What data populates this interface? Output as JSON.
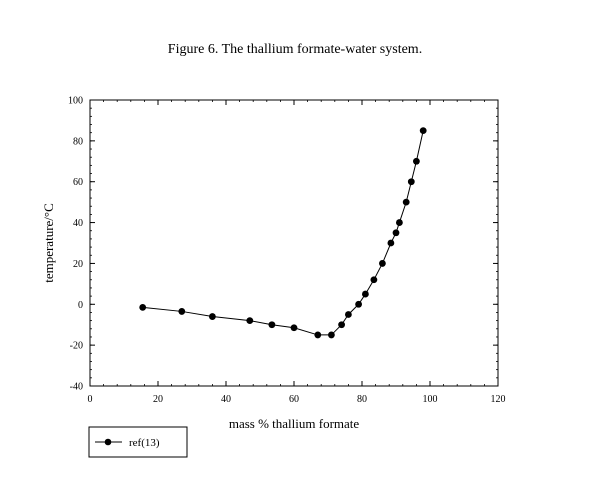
{
  "chart_data": {
    "type": "line",
    "title": "Figure 6. The thallium formate-water system.",
    "xlabel": "mass % thallium formate",
    "ylabel": "temperature/°C",
    "xlim": [
      0,
      120
    ],
    "ylim": [
      -40,
      100
    ],
    "x_ticks": [
      0,
      20,
      40,
      60,
      80,
      100,
      120
    ],
    "y_ticks": [
      -40,
      -20,
      0,
      20,
      40,
      60,
      80,
      100
    ],
    "x_tick_labels": [
      "0",
      "20",
      "40",
      "60",
      "80",
      "100",
      "120"
    ],
    "y_tick_labels": [
      "-40",
      "-20",
      "0",
      "20",
      "40",
      "60",
      "80",
      "100"
    ],
    "grid": false,
    "legend_position": "bottom-left, outside plot",
    "series": [
      {
        "name": "ref(13)",
        "marker": "filled-circle",
        "color": "#000000",
        "x": [
          15.5,
          27,
          36,
          47,
          53.5,
          60,
          67,
          71,
          74,
          76,
          79,
          81,
          83.5,
          86,
          88.5,
          90,
          91,
          93,
          94.5,
          96,
          98
        ],
        "y": [
          -1.5,
          -3.5,
          -6,
          -8,
          -10,
          -11.5,
          -15,
          -15,
          -10,
          -5,
          0,
          5,
          12,
          20,
          30,
          35,
          40,
          50,
          60,
          70,
          85
        ]
      }
    ]
  }
}
